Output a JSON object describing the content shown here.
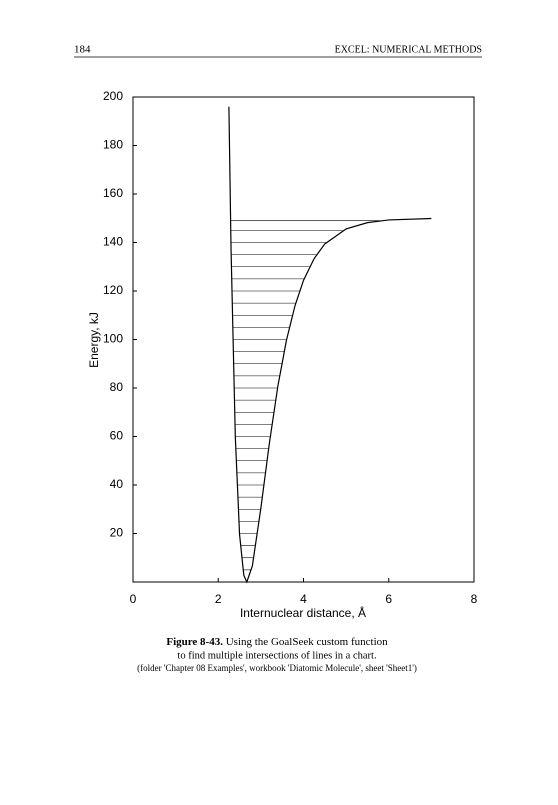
{
  "header": {
    "page_number": "184",
    "running_title": "EXCEL: NUMERICAL METHODS"
  },
  "chart_data": {
    "type": "line",
    "x_label": "Internuclear distance, Å",
    "y_label": "Energy, kJ",
    "color": "#000000",
    "x": [
      2.25,
      2.3,
      2.4,
      2.5,
      2.6,
      2.67,
      2.8,
      3.0,
      3.2,
      3.4,
      3.6,
      3.8,
      4.0,
      4.25,
      4.5,
      5.0,
      5.5,
      6.0,
      7.0
    ],
    "values": [
      196,
      137.4,
      60.0,
      19.6,
      2.75,
      0,
      6.6,
      30.5,
      57.3,
      80.9,
      99.7,
      113.9,
      124.4,
      133.4,
      139.4,
      145.6,
      148.2,
      149.3,
      149.9
    ],
    "levels": {
      "values": [
        5,
        10,
        15,
        20,
        25,
        30,
        35,
        40,
        45,
        50,
        55,
        60,
        65,
        70,
        75,
        80,
        85,
        90,
        95,
        100,
        105,
        110,
        115,
        120,
        125,
        130,
        135,
        140,
        145,
        149
      ],
      "x_left": [
        2.578,
        2.543,
        2.519,
        2.499,
        2.481,
        2.466,
        2.453,
        2.441,
        2.429,
        2.419,
        2.409,
        2.4,
        2.391,
        2.383,
        2.375,
        2.368,
        2.361,
        2.354,
        2.348,
        2.341,
        2.335,
        2.329,
        2.324,
        2.318,
        2.313,
        2.308,
        2.302,
        2.298,
        2.293,
        2.289
      ],
      "x_right": [
        2.781,
        2.835,
        2.879,
        2.92,
        2.959,
        2.997,
        3.034,
        3.07,
        3.107,
        3.145,
        3.182,
        3.222,
        3.262,
        3.303,
        3.347,
        3.392,
        3.44,
        3.491,
        3.545,
        3.604,
        3.669,
        3.739,
        3.818,
        3.909,
        4.015,
        4.142,
        4.306,
        4.535,
        4.921,
        5.812
      ]
    },
    "xlim": [
      0,
      8
    ],
    "xticks": [
      0,
      2,
      4,
      6,
      8
    ],
    "ylim": [
      0,
      200
    ],
    "yticks": [
      20,
      40,
      60,
      80,
      100,
      120,
      140,
      160,
      180,
      200
    ]
  },
  "caption": {
    "label": "Figure 8-43.",
    "line1": "Using the GoalSeek custom function",
    "line2": "to find multiple intersections of lines in a chart.",
    "line3": "(folder 'Chapter 08 Examples', workbook 'Diatomic Molecule', sheet 'Sheet1')"
  }
}
